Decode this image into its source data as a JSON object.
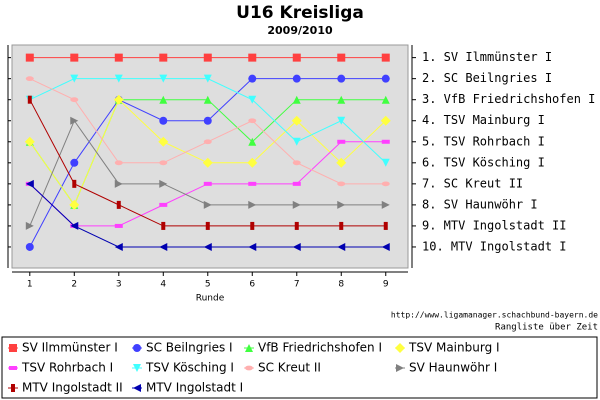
{
  "chart_data": {
    "type": "line",
    "title": "U16 Kreisliga",
    "subtitle": "2009/2010",
    "xlabel": "Runde",
    "source": "http://www.ligamanager.schachbund-bayern.de",
    "caption": "Rangliste über Zeit",
    "x": [
      1,
      2,
      3,
      4,
      5,
      6,
      7,
      8,
      9
    ],
    "xlim": [
      0.6,
      9.5
    ],
    "xticks": [
      1,
      2,
      3,
      4,
      5,
      6,
      7,
      8,
      9
    ],
    "ylim": [
      11,
      0.4
    ],
    "yticks": [
      {
        "value": 1,
        "label": "1. SV Ilmmünster I"
      },
      {
        "value": 2,
        "label": "2. SC Beilngries I"
      },
      {
        "value": 3,
        "label": "3. VfB Friedrichshofen I"
      },
      {
        "value": 4,
        "label": "4. TSV Mainburg I"
      },
      {
        "value": 5,
        "label": "5. TSV Rohrbach I"
      },
      {
        "value": 6,
        "label": "6. TSV Kösching I"
      },
      {
        "value": 7,
        "label": "7. SC Kreut II"
      },
      {
        "value": 8,
        "label": "8. SV Haunwöhr I"
      },
      {
        "value": 9,
        "label": "9. MTV Ingolstadt II"
      },
      {
        "value": 10,
        "label": "10. MTV Ingolstadt I"
      }
    ],
    "legend": "bottom",
    "series": [
      {
        "name": "SV Ilmmünster I",
        "color": "#ff4040",
        "marker": "square",
        "values": [
          1,
          1,
          1,
          1,
          1,
          1,
          1,
          1,
          1
        ]
      },
      {
        "name": "SC Beilngries I",
        "color": "#4040ff",
        "marker": "circle",
        "values": [
          10,
          6,
          3,
          4,
          4,
          2,
          2,
          2,
          2
        ]
      },
      {
        "name": "VfB Friedrichshofen I",
        "color": "#40ff40",
        "marker": "triangle-up",
        "values": [
          5,
          8,
          3,
          3,
          3,
          5,
          3,
          3,
          3
        ]
      },
      {
        "name": "TSV Mainburg I",
        "color": "#ffff40",
        "marker": "diamond",
        "values": [
          5,
          8,
          3,
          5,
          6,
          6,
          4,
          6,
          4
        ]
      },
      {
        "name": "TSV Rohrbach I",
        "color": "#ff40ff",
        "marker": "hbar",
        "values": [
          7,
          9,
          9,
          8,
          7,
          7,
          7,
          5,
          5
        ]
      },
      {
        "name": "TSV Kösching I",
        "color": "#40ffff",
        "marker": "triangle-down",
        "values": [
          3,
          2,
          2,
          2,
          2,
          3,
          5,
          4,
          6
        ]
      },
      {
        "name": "SC Kreut II",
        "color": "#ffafaf",
        "marker": "ellipse",
        "values": [
          2,
          3,
          6,
          6,
          5,
          4,
          6,
          7,
          7
        ]
      },
      {
        "name": "SV Haunwöhr I",
        "color": "#808080",
        "marker": "triangle-right",
        "values": [
          9,
          4,
          7,
          7,
          8,
          8,
          8,
          8,
          8
        ]
      },
      {
        "name": "MTV Ingolstadt II",
        "color": "#b00000",
        "marker": "vbar",
        "values": [
          3,
          7,
          8,
          9,
          9,
          9,
          9,
          9,
          9
        ]
      },
      {
        "name": "MTV Ingolstadt I",
        "color": "#0000b0",
        "marker": "triangle-left",
        "values": [
          7,
          9,
          10,
          10,
          10,
          10,
          10,
          10,
          10
        ]
      }
    ]
  }
}
